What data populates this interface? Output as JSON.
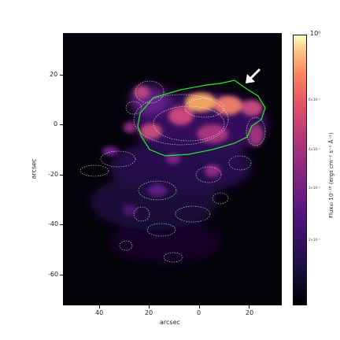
{
  "axes": {
    "xlabel": "arcsec",
    "ylabel": "arcsec",
    "xticks": [
      "40",
      "20",
      "0",
      "20"
    ],
    "yticks": [
      "20",
      "0",
      "-20",
      "-40",
      "-60"
    ]
  },
  "colorbar": {
    "top_label": "10⁰",
    "label": "Flux$_{40}$ 10$^{-18}$ (ergs cm$^{-2}$ s$^{-1}$ Å$^{-1}$)",
    "label_text": "Flux₄₀ 10⁻¹⁸ (ergs cm⁻² s⁻¹ Å⁻¹)",
    "tick_labels": [
      "6×10⁻¹",
      "4×10⁻¹",
      "3×10⁻¹",
      "2×10⁻¹"
    ],
    "colormap": "magma"
  },
  "colors": {
    "contour_green": "#22ee22",
    "contour_white": "#ffffff",
    "arrow": "#ffffff",
    "background": "#05030a"
  }
}
